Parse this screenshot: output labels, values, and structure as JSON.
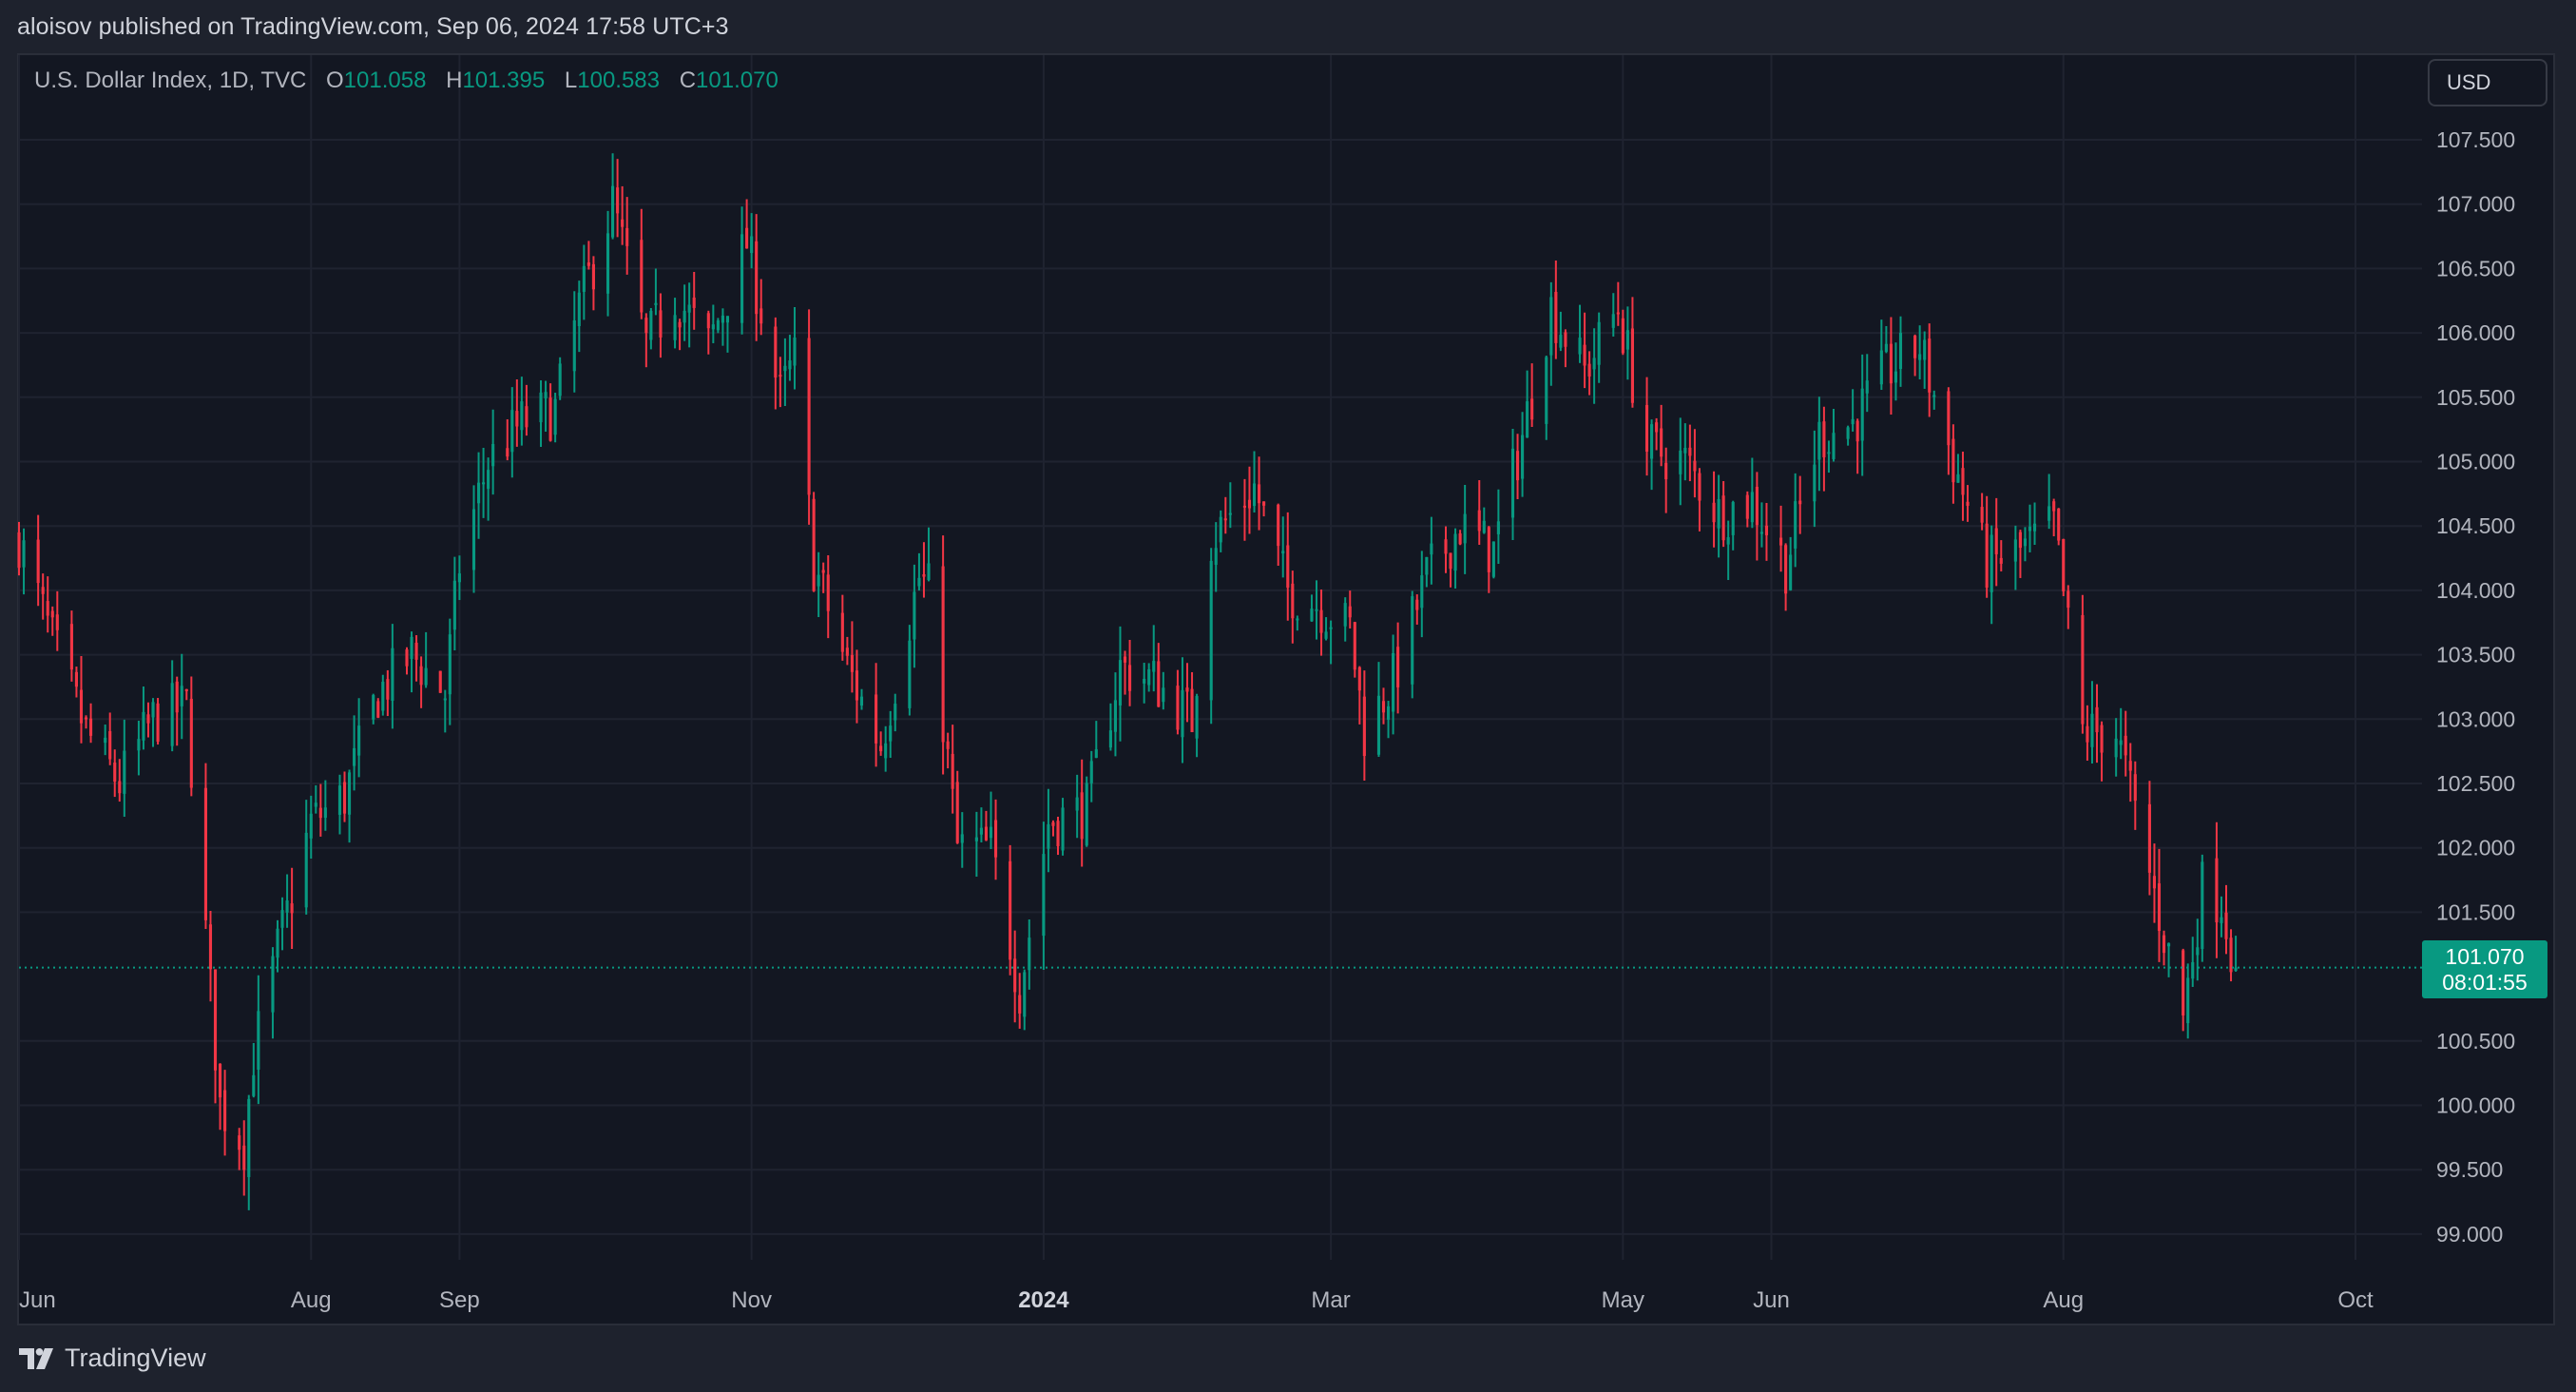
{
  "header": {
    "published_text": "aloisov published on TradingView.com, Sep 06, 2024 17:58 UTC+3"
  },
  "legend": {
    "symbol_text": "U.S. Dollar Index, 1D, TVC",
    "open_key": "O",
    "open_value": "101.058",
    "high_key": "H",
    "high_value": "101.395",
    "low_key": "L",
    "low_value": "100.583",
    "close_key": "C",
    "close_value": "101.070"
  },
  "currency_button": "USD",
  "price_tag": {
    "price": "101.070",
    "countdown": "08:01:55"
  },
  "brand": {
    "name": "TradingView"
  },
  "colors": {
    "up": "#089981",
    "down": "#f23645",
    "background": "#131722",
    "frame": "#1e222d",
    "grid": "#1f2330",
    "text": "#b2b5be"
  },
  "chart_data": {
    "type": "candlestick",
    "title": "U.S. Dollar Index, 1D, TVC",
    "ylabel": "USD",
    "ylim": [
      98.6,
      107.85
    ],
    "y_ticks": [
      "107.500",
      "107.000",
      "106.500",
      "106.000",
      "105.500",
      "105.000",
      "104.500",
      "104.000",
      "103.500",
      "103.000",
      "102.500",
      "102.000",
      "101.500",
      "100.500",
      "100.000",
      "99.500",
      "99.000"
    ],
    "x_range": [
      "2023-06-01",
      "2024-10-07"
    ],
    "x_ticks": [
      {
        "label": "Jun",
        "date": "2023-06-01"
      },
      {
        "label": "Aug",
        "date": "2023-08-01"
      },
      {
        "label": "Sep",
        "date": "2023-09-01"
      },
      {
        "label": "Nov",
        "date": "2023-11-01"
      },
      {
        "label": "2024",
        "date": "2024-01-01",
        "bold": true
      },
      {
        "label": "Mar",
        "date": "2024-03-01"
      },
      {
        "label": "May",
        "date": "2024-05-01"
      },
      {
        "label": "Jun",
        "date": "2024-06-01"
      },
      {
        "label": "Aug",
        "date": "2024-08-01"
      },
      {
        "label": "Oct",
        "date": "2024-10-01"
      }
    ],
    "last_price": 101.07,
    "close_path": [
      [
        "2023-06-01",
        104.4
      ],
      [
        "2023-06-08",
        103.6
      ],
      [
        "2023-06-15",
        102.9
      ],
      [
        "2023-06-22",
        102.5
      ],
      [
        "2023-06-29",
        103.0
      ],
      [
        "2023-07-06",
        103.1
      ],
      [
        "2023-07-13",
        100.0
      ],
      [
        "2023-07-18",
        99.7
      ],
      [
        "2023-07-20",
        100.4
      ],
      [
        "2023-07-25",
        101.2
      ],
      [
        "2023-08-01",
        102.2
      ],
      [
        "2023-08-08",
        102.4
      ],
      [
        "2023-08-15",
        103.2
      ],
      [
        "2023-08-22",
        103.5
      ],
      [
        "2023-08-29",
        103.2
      ],
      [
        "2023-09-01",
        104.2
      ],
      [
        "2023-09-07",
        105.0
      ],
      [
        "2023-09-14",
        105.3
      ],
      [
        "2023-09-21",
        105.4
      ],
      [
        "2023-09-26",
        106.2
      ],
      [
        "2023-10-03",
        107.0
      ],
      [
        "2023-10-10",
        105.9
      ],
      [
        "2023-10-16",
        106.3
      ],
      [
        "2023-10-23",
        105.9
      ],
      [
        "2023-10-31",
        106.7
      ],
      [
        "2023-11-07",
        105.5
      ],
      [
        "2023-11-10",
        105.8
      ],
      [
        "2023-11-14",
        104.2
      ],
      [
        "2023-11-21",
        103.4
      ],
      [
        "2023-11-28",
        102.8
      ],
      [
        "2023-12-01",
        103.3
      ],
      [
        "2023-12-06",
        104.1
      ],
      [
        "2023-12-08",
        104.0
      ],
      [
        "2023-12-14",
        102.0
      ],
      [
        "2023-12-21",
        102.0
      ],
      [
        "2023-12-27",
        100.9
      ],
      [
        "2024-01-02",
        102.2
      ],
      [
        "2024-01-10",
        102.3
      ],
      [
        "2024-01-17",
        103.4
      ],
      [
        "2024-01-24",
        103.3
      ],
      [
        "2024-02-01",
        103.0
      ],
      [
        "2024-02-05",
        104.4
      ],
      [
        "2024-02-14",
        104.8
      ],
      [
        "2024-02-21",
        104.0
      ],
      [
        "2024-02-27",
        103.9
      ],
      [
        "2024-03-05",
        103.7
      ],
      [
        "2024-03-08",
        102.9
      ],
      [
        "2024-03-14",
        103.3
      ],
      [
        "2024-03-21",
        104.1
      ],
      [
        "2024-03-28",
        104.5
      ],
      [
        "2024-04-04",
        104.3
      ],
      [
        "2024-04-10",
        105.2
      ],
      [
        "2024-04-16",
        106.2
      ],
      [
        "2024-04-23",
        105.7
      ],
      [
        "2024-04-30",
        106.2
      ],
      [
        "2024-05-06",
        105.1
      ],
      [
        "2024-05-14",
        105.0
      ],
      [
        "2024-05-21",
        104.6
      ],
      [
        "2024-05-28",
        104.7
      ],
      [
        "2024-06-04",
        104.2
      ],
      [
        "2024-06-11",
        105.2
      ],
      [
        "2024-06-18",
        105.3
      ],
      [
        "2024-06-25",
        105.7
      ],
      [
        "2024-07-02",
        105.9
      ],
      [
        "2024-07-09",
        105.0
      ],
      [
        "2024-07-16",
        104.2
      ],
      [
        "2024-07-23",
        104.3
      ],
      [
        "2024-07-30",
        104.5
      ],
      [
        "2024-08-05",
        102.9
      ],
      [
        "2024-08-12",
        102.9
      ],
      [
        "2024-08-19",
        101.8
      ],
      [
        "2024-08-26",
        100.7
      ],
      [
        "2024-08-30",
        101.7
      ],
      [
        "2024-09-03",
        101.6
      ],
      [
        "2024-09-06",
        101.07
      ]
    ],
    "grid": true
  }
}
